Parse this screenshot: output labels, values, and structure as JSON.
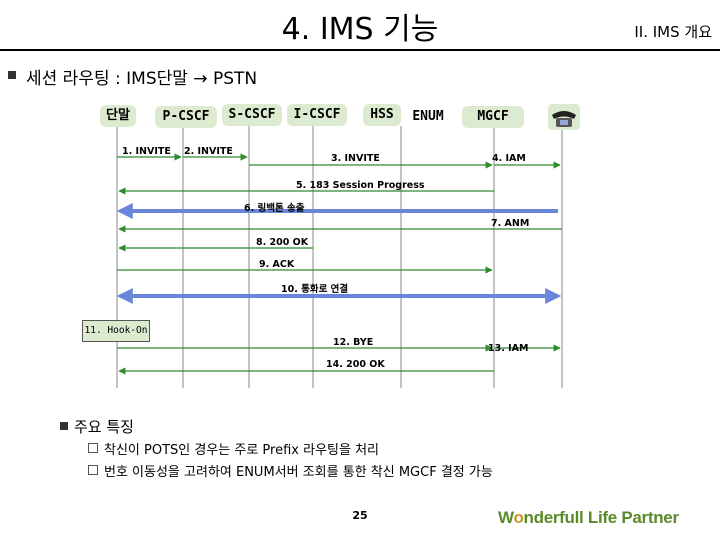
{
  "header": {
    "title": "4. IMS 기능",
    "section": "II. IMS 개요"
  },
  "heading": "세션 라우팅 : IMS단말 → PSTN",
  "nodes": {
    "terminal": "단말",
    "pcscf": "P-CSCF",
    "scscf": "S-CSCF",
    "icscf": "I-CSCF",
    "hss": "HSS",
    "enum": "ENUM",
    "mgcf": "MGCF",
    "phone_icon": "telephone-icon"
  },
  "messages": {
    "m1": "1. INVITE",
    "m2": "2. INVITE",
    "m3": "3. INVITE",
    "m4": "4. IAM",
    "m5": "5. 183 Session Progress",
    "m6": "6. 링백톤 송출",
    "m7": "7. ANM",
    "m8": "8. 200 OK",
    "m9": "9. ACK",
    "m10": "10. 통화로 연결",
    "m11": "11. Hook-On",
    "m12": "12. BYE",
    "m13": "13. IAM",
    "m14": "14. 200 OK"
  },
  "features": {
    "title": "주요 특징",
    "items": [
      "착신이 POTS인 경우는 주로 Prefix 라우팅을 처리",
      "번호 이동성을 고려하여 ENUM서버 조회를 통한 착신 MGCF 결정 가능"
    ]
  },
  "footer": {
    "page_number": "25",
    "brand_first": "W",
    "brand_rest": "nderfull Life Partner",
    "brand_mark": "o"
  },
  "colors": {
    "arrow": "#2e8b2e",
    "media": "#6a86d8",
    "node_fill": "#dcebd0"
  }
}
